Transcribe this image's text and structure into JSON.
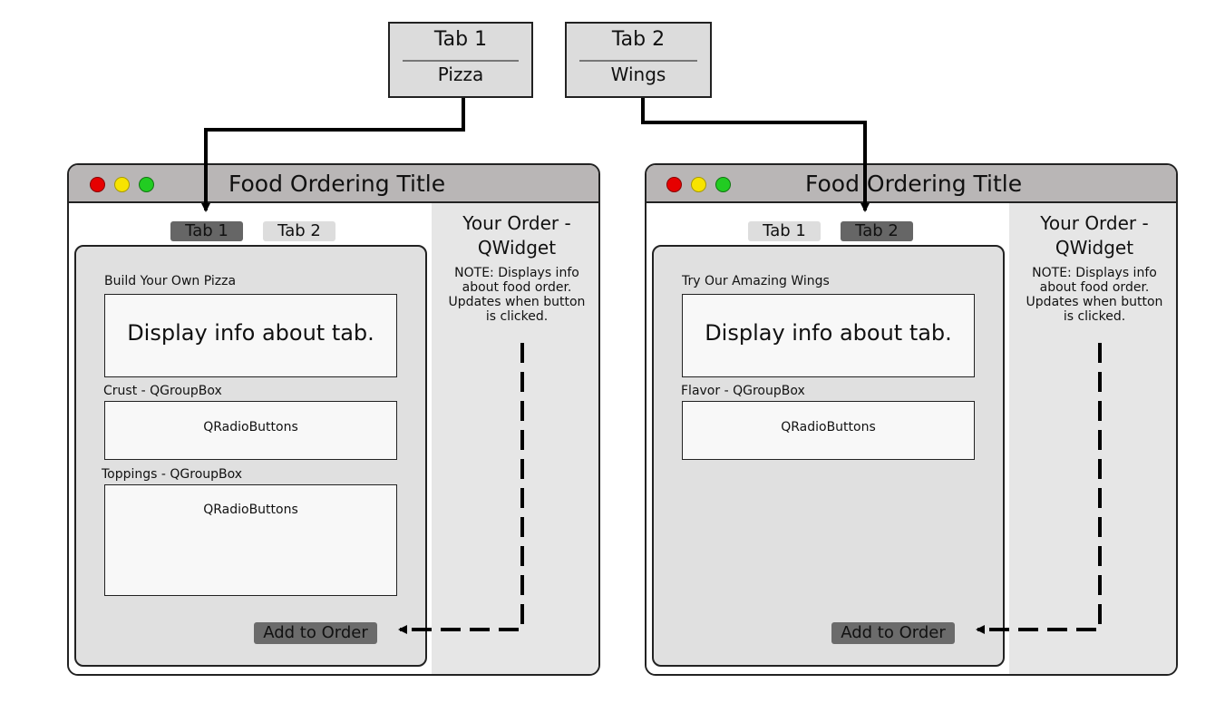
{
  "callouts": [
    {
      "tab": "Tab 1",
      "name": "Pizza"
    },
    {
      "tab": "Tab 2",
      "name": "Wings"
    }
  ],
  "windows": [
    {
      "title": "Food Ordering Title",
      "tabs": [
        "Tab 1",
        "Tab 2"
      ],
      "active_tab": 0,
      "heading": "Build Your Own Pizza",
      "display_text": "Display info about tab.",
      "groups": [
        {
          "label": "Crust - QGroupBox",
          "content": "QRadioButtons"
        },
        {
          "label": "Toppings - QGroupBox",
          "content": "QRadioButtons"
        }
      ],
      "add_button": "Add to Order",
      "order_title_line1": "Your Order -",
      "order_title_line2": "QWidget",
      "order_note": [
        "NOTE: Displays info",
        "about food order.",
        "Updates when button",
        "is clicked."
      ]
    },
    {
      "title": "Food Ordering Title",
      "tabs": [
        "Tab 1",
        "Tab 2"
      ],
      "active_tab": 1,
      "heading": "Try Our Amazing Wings",
      "display_text": "Display info about tab.",
      "groups": [
        {
          "label": "Flavor - QGroupBox",
          "content": "QRadioButtons"
        }
      ],
      "add_button": "Add to Order",
      "order_title_line1": "Your Order -",
      "order_title_line2": "QWidget",
      "order_note": [
        "NOTE: Displays info",
        "about food order.",
        "Updates when button",
        "is clicked."
      ]
    }
  ],
  "colors": {
    "titlebar": "#b9b6b6",
    "active_tab": "#666666",
    "inactive_tab": "#dddddd",
    "close": "#e60000",
    "minimize": "#f7e400",
    "maximize": "#22cc22"
  }
}
